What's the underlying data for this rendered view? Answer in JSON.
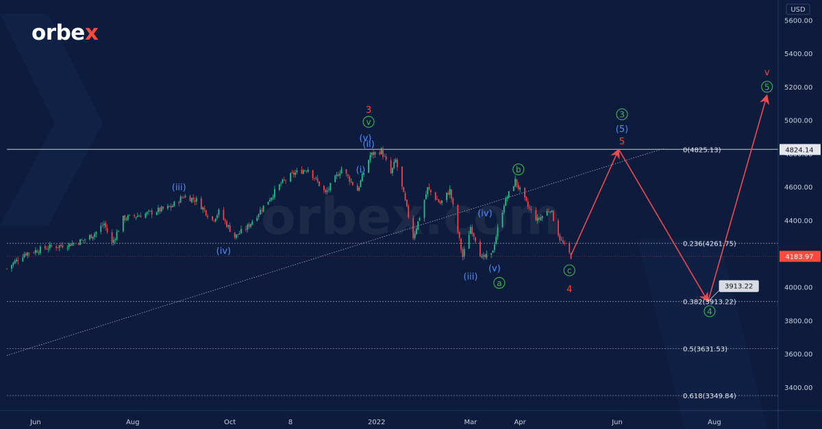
{
  "brand": {
    "logo_text": "orbe",
    "logo_accent": "x",
    "watermark": "orbex.com",
    "accent_color": "#ff4a3d"
  },
  "chart_data": {
    "type": "candlestick",
    "currency": "USD",
    "y_ticks": [
      3400,
      3600,
      3800,
      4000,
      4200,
      4400,
      4600,
      4800,
      5000,
      5200,
      5400,
      5600
    ],
    "y_tick_labels": [
      "3400.00",
      "3600.00",
      "3800.00",
      "4000.00",
      "4200.00",
      "4400.00",
      "4600.00",
      "4800.00",
      "5000.00",
      "5200.00",
      "5400.00",
      "5600.00"
    ],
    "ylim": [
      3260,
      5720
    ],
    "x_ticks": [
      {
        "label": "Jun",
        "date": "2021-06-01"
      },
      {
        "label": "Aug",
        "date": "2021-08-01"
      },
      {
        "label": "Oct",
        "date": "2021-10-01"
      },
      {
        "label": "8",
        "date": "2021-11-08"
      },
      {
        "label": "2022",
        "date": "2022-01-01"
      },
      {
        "label": "Mar",
        "date": "2022-03-01"
      },
      {
        "label": "Apr",
        "date": "2022-04-01"
      },
      {
        "label": "Jun",
        "date": "2022-06-01"
      },
      {
        "label": "Aug",
        "date": "2022-08-01"
      }
    ],
    "xlim": [
      "2021-05-14",
      "2022-09-10"
    ],
    "price_path": [
      [
        "2021-05-14",
        4110
      ],
      [
        "2021-05-25",
        4200
      ],
      [
        "2021-06-10",
        4240
      ],
      [
        "2021-06-22",
        4255
      ],
      [
        "2021-07-01",
        4280
      ],
      [
        "2021-07-08",
        4320
      ],
      [
        "2021-07-14",
        4380
      ],
      [
        "2021-07-19",
        4260
      ],
      [
        "2021-07-26",
        4410
      ],
      [
        "2021-08-10",
        4440
      ],
      [
        "2021-08-25",
        4480
      ],
      [
        "2021-09-02",
        4545
      ],
      [
        "2021-09-10",
        4520
      ],
      [
        "2021-09-20",
        4400
      ],
      [
        "2021-09-24",
        4450
      ],
      [
        "2021-10-04",
        4300
      ],
      [
        "2021-10-12",
        4360
      ],
      [
        "2021-10-21",
        4470
      ],
      [
        "2021-11-02",
        4620
      ],
      [
        "2021-11-10",
        4680
      ],
      [
        "2021-11-19",
        4710
      ],
      [
        "2021-11-30",
        4560
      ],
      [
        "2021-12-10",
        4710
      ],
      [
        "2021-12-20",
        4580
      ],
      [
        "2021-12-28",
        4790
      ],
      [
        "2022-01-04",
        4818
      ],
      [
        "2022-01-10",
        4680
      ],
      [
        "2022-01-13",
        4760
      ],
      [
        "2022-01-24",
        4300
      ],
      [
        "2022-01-28",
        4420
      ],
      [
        "2022-02-02",
        4590
      ],
      [
        "2022-02-10",
        4500
      ],
      [
        "2022-02-16",
        4580
      ],
      [
        "2022-02-24",
        4180
      ],
      [
        "2022-03-01",
        4360
      ],
      [
        "2022-03-04",
        4290
      ],
      [
        "2022-03-08",
        4170
      ],
      [
        "2022-03-14",
        4190
      ],
      [
        "2022-03-22",
        4500
      ],
      [
        "2022-03-29",
        4637
      ],
      [
        "2022-04-06",
        4480
      ],
      [
        "2022-04-12",
        4400
      ],
      [
        "2022-04-20",
        4470
      ],
      [
        "2022-04-26",
        4290
      ],
      [
        "2022-05-03",
        4183.97
      ]
    ],
    "trendline": {
      "from": [
        "2021-05-14",
        3590
      ],
      "to": [
        "2022-06-30",
        4830
      ]
    },
    "projection": [
      [
        "2022-05-03",
        4190
      ],
      [
        "2022-06-02",
        4825
      ],
      [
        "2022-07-28",
        3913.22
      ],
      [
        "2022-09-03",
        5150
      ]
    ],
    "fib_levels": [
      {
        "level": 0,
        "value": 4825.13,
        "label": "0(4825.13)",
        "solid": true
      },
      {
        "level": 0.236,
        "value": 4261.75,
        "label": "0.236(4261.75)",
        "solid": false
      },
      {
        "level": 0.382,
        "value": 3913.22,
        "label": "0.382(3913.22)",
        "solid": false
      },
      {
        "level": 0.5,
        "value": 3631.53,
        "label": "0.5(3631.53)",
        "solid": false
      },
      {
        "level": 0.618,
        "value": 3349.84,
        "label": "0.618(3349.84)",
        "solid": false
      }
    ],
    "last_price": {
      "value": 4183.97,
      "label": "4183.97",
      "color": "#ff4a3d"
    },
    "level_marker": {
      "value": 4824.14,
      "label": "4824.14"
    },
    "target_callout": {
      "value": 3913.22,
      "label": "3913.22",
      "date": "2022-07-28"
    },
    "wave_labels": [
      {
        "text": "(iii)",
        "date": "2021-08-30",
        "price": 4600,
        "color": "#4d8dff",
        "circle": false
      },
      {
        "text": "(iv)",
        "date": "2021-09-27",
        "price": 4220,
        "color": "#4d8dff",
        "circle": false
      },
      {
        "text": "3",
        "date": "2021-12-27",
        "price": 5065,
        "color": "#f04a42",
        "circle": false
      },
      {
        "text": "v",
        "date": "2021-12-27",
        "price": 4990,
        "color": "#3fb950",
        "circle": true
      },
      {
        "text": "(v)",
        "date": "2021-12-25",
        "price": 4895,
        "color": "#4d8dff",
        "circle": false
      },
      {
        "text": "(ii)",
        "date": "2021-12-27",
        "price": 4858,
        "color": "#4d8dff",
        "circle": false
      },
      {
        "text": "(i)",
        "date": "2021-12-22",
        "price": 4705,
        "color": "#4d8dff",
        "circle": false
      },
      {
        "text": "(iii)",
        "date": "2022-03-01",
        "price": 4065,
        "color": "#4d8dff",
        "circle": false
      },
      {
        "text": "(iv)",
        "date": "2022-03-10",
        "price": 4445,
        "color": "#4d8dff",
        "circle": false
      },
      {
        "text": "(v)",
        "date": "2022-03-16",
        "price": 4115,
        "color": "#4d8dff",
        "circle": false
      },
      {
        "text": "a",
        "date": "2022-03-19",
        "price": 4025,
        "color": "#3fb950",
        "circle": true
      },
      {
        "text": "b",
        "date": "2022-03-31",
        "price": 4705,
        "color": "#3fb950",
        "circle": true
      },
      {
        "text": "c",
        "date": "2022-05-02",
        "price": 4100,
        "color": "#3fb950",
        "circle": true
      },
      {
        "text": "4",
        "date": "2022-05-02",
        "price": 3990,
        "color": "#f04a42",
        "circle": false
      },
      {
        "text": "3",
        "date": "2022-06-04",
        "price": 5035,
        "color": "#3fb950",
        "circle": true
      },
      {
        "text": "(5)",
        "date": "2022-06-04",
        "price": 4950,
        "color": "#4d8dff",
        "circle": false
      },
      {
        "text": "5",
        "date": "2022-06-04",
        "price": 4875,
        "color": "#f04a42",
        "circle": false
      },
      {
        "text": "4",
        "date": "2022-07-29",
        "price": 3855,
        "color": "#3fb950",
        "circle": true
      },
      {
        "text": "v",
        "date": "2022-09-03",
        "price": 5290,
        "color": "#f04a42",
        "circle": false
      },
      {
        "text": "5",
        "date": "2022-09-03",
        "price": 5200,
        "color": "#3fb950",
        "circle": true
      }
    ]
  }
}
